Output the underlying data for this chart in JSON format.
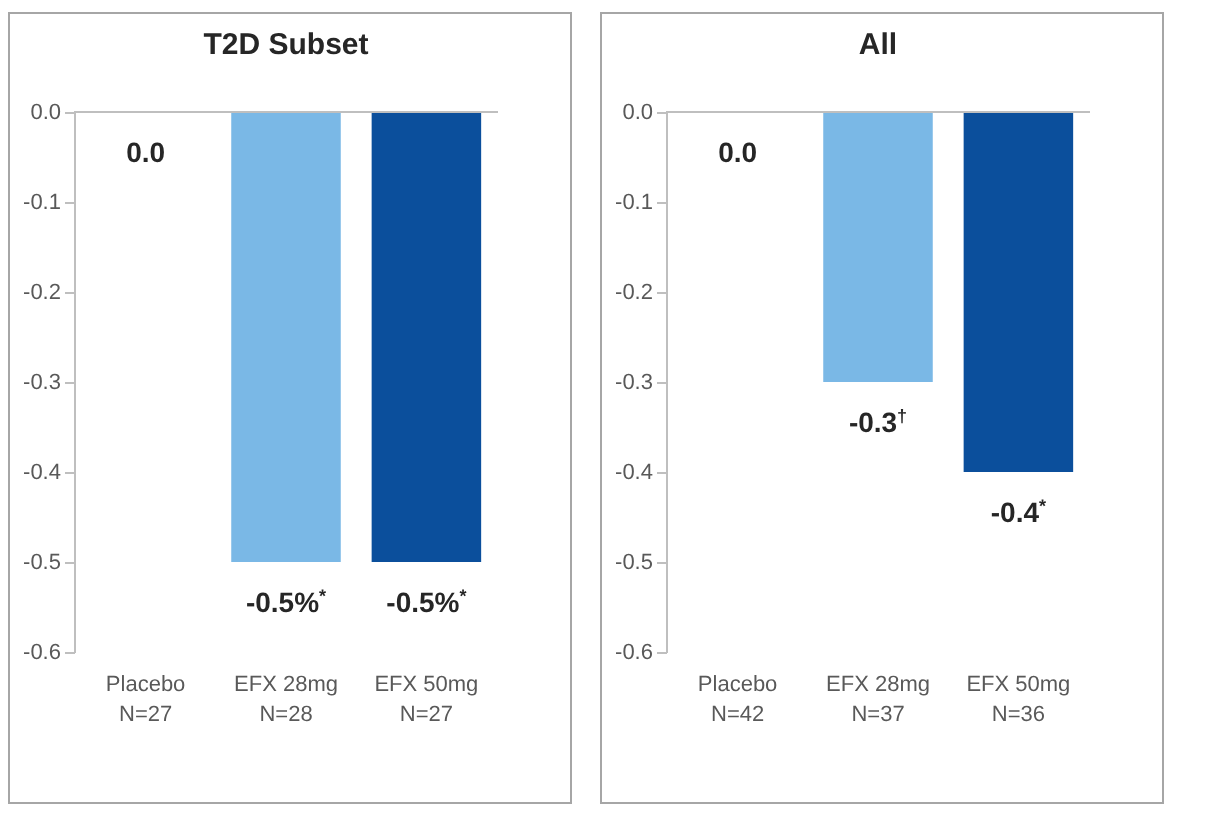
{
  "chart_data": [
    {
      "type": "bar",
      "title": "T2D Subset",
      "categories": [
        "Placebo\nN=27",
        "EFX 28mg\nN=28",
        "EFX 50mg\nN=27"
      ],
      "values": [
        0.0,
        -0.5,
        -0.5
      ],
      "colors": [
        "#7ab8e6",
        "#7ab8e6",
        "#0b4f9c"
      ],
      "value_labels": [
        "0.0",
        "-0.5%$^{*}$",
        "-0.5%$^{*}$"
      ],
      "ylim": [
        -0.6,
        0.0
      ],
      "yticks": [
        {
          "value": 0,
          "label": "0.0"
        },
        -0.1,
        -0.2,
        -0.3,
        -0.4,
        -0.5,
        -0.6
      ],
      "grid": false
    },
    {
      "type": "bar",
      "title": "All",
      "categories": [
        "Placebo\nN=42",
        "EFX 28mg\nN=37",
        "EFX 50mg\nN=36"
      ],
      "values": [
        0.0,
        -0.3,
        -0.4
      ],
      "colors": [
        "#7ab8e6",
        "#7ab8e6",
        "#0b4f9c"
      ],
      "value_labels": [
        "0.0",
        "-0.3$^{†}$",
        "-0.4$^{*}$"
      ],
      "ylim": [
        -0.6,
        0.0
      ],
      "yticks": [
        {
          "value": 0,
          "label": "0.0"
        },
        -0.1,
        -0.2,
        -0.3,
        -0.4,
        -0.5,
        -0.6
      ],
      "grid": false
    }
  ]
}
